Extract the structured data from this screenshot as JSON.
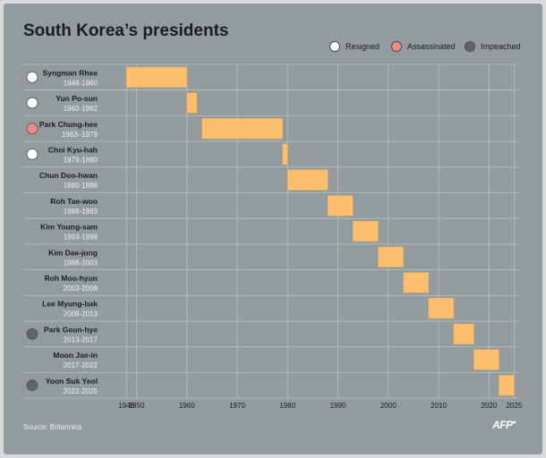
{
  "title": "South Korea’s presidents",
  "source": "Source: Britannica",
  "logo": "AFP",
  "colors": {
    "bar": "#fbbf6e",
    "resigned": "#ffffff",
    "assassinated": "#f08a84",
    "impeached": "#5f6568",
    "grid": "#b9c0c2"
  },
  "legend": [
    {
      "key": "resigned",
      "label": "Resigned"
    },
    {
      "key": "assassinated",
      "label": "Assassinated"
    },
    {
      "key": "impeached",
      "label": "Impeached"
    }
  ],
  "chart_data": {
    "type": "bar",
    "orientation": "horizontal-range",
    "xlim": [
      1946,
      2026
    ],
    "xticks": [
      1948,
      1950,
      1960,
      1970,
      1980,
      1990,
      2000,
      2010,
      2020,
      2025
    ],
    "grid": true,
    "legend_position": "top-right",
    "presidents": [
      {
        "name": "Syngman Rhee",
        "term": "1948-1960",
        "start": 1948,
        "end": 1960,
        "status": "resigned"
      },
      {
        "name": "Yun Po-sun",
        "term": "1960-1962",
        "start": 1960,
        "end": 1962,
        "status": "resigned"
      },
      {
        "name": "Park Chung-hee",
        "term": "1963–1979",
        "start": 1963,
        "end": 1979,
        "status": "assassinated"
      },
      {
        "name": "Choi Kyu-hah",
        "term": "1979-1980",
        "start": 1979,
        "end": 1980,
        "status": "resigned"
      },
      {
        "name": "Chun Doo-hwan",
        "term": "1980-1988",
        "start": 1980,
        "end": 1988,
        "status": ""
      },
      {
        "name": "Roh Tae-woo",
        "term": "1988-1993",
        "start": 1988,
        "end": 1993,
        "status": ""
      },
      {
        "name": "Kim Young-sam",
        "term": "1993-1998",
        "start": 1993,
        "end": 1998,
        "status": ""
      },
      {
        "name": "Kim Dae-jung",
        "term": "1998-2003",
        "start": 1998,
        "end": 2003,
        "status": ""
      },
      {
        "name": "Roh Moo-hyun",
        "term": "2003-2008",
        "start": 2003,
        "end": 2008,
        "status": ""
      },
      {
        "name": "Lee Myung-bak",
        "term": "2008-2013",
        "start": 2008,
        "end": 2013,
        "status": ""
      },
      {
        "name": "Park Geun-hye",
        "term": "2013-2017",
        "start": 2013,
        "end": 2017,
        "status": "impeached"
      },
      {
        "name": "Moon Jae-in",
        "term": "2017-2022",
        "start": 2017,
        "end": 2022,
        "status": ""
      },
      {
        "name": "Yoon Suk Yeol",
        "term": "2022-2025",
        "start": 2022,
        "end": 2025,
        "status": "impeached"
      }
    ]
  }
}
